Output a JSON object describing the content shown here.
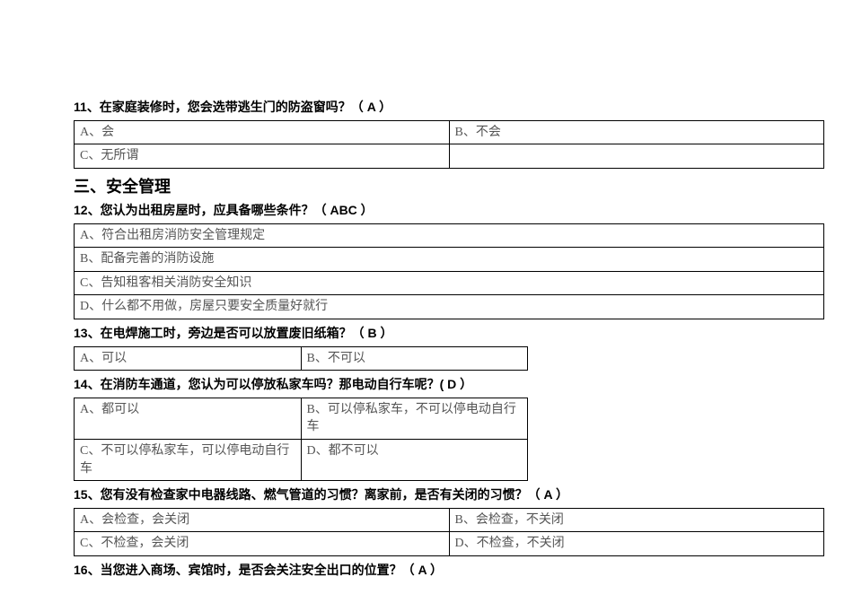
{
  "q11": {
    "text": "11、在家庭装修时，您会选带逃生门的防盗窗吗？（ A ）",
    "a": "A、会",
    "b": "B、不会",
    "c": "C、无所谓"
  },
  "section3": "三、安全管理",
  "q12": {
    "text": "12、您认为出租房屋时，应具备哪些条件？（ ABC ）",
    "a": "A、符合出租房消防安全管理规定",
    "b": "B、配备完善的消防设施",
    "c": "C、告知租客相关消防安全知识",
    "d": "D、什么都不用做，房屋只要安全质量好就行"
  },
  "q13": {
    "text": "13、在电焊施工时，旁边是否可以放置废旧纸箱？（ B ）",
    "a": "A、可以",
    "b": "B、不可以"
  },
  "q14": {
    "text": "14、在消防车通道，您认为可以停放私家车吗？那电动自行车呢？( D ）",
    "a": "A、都可以",
    "b": "B、可以停私家车，不可以停电动自行车",
    "c": "C、不可以停私家车，可以停电动自行车",
    "d": "D、都不可以"
  },
  "q15": {
    "text": "15、您有没有检查家中电器线路、燃气管道的习惯？离家前，是否有关闭的习惯？（ A ）",
    "a": "A、会检查，会关闭",
    "b": "B、会检查，不关闭",
    "c": "C、不检查，会关闭",
    "d": "D、不检查，不关闭"
  },
  "q16": {
    "text": "16、当您进入商场、宾馆时，是否会关注安全出口的位置？（ A ）"
  }
}
